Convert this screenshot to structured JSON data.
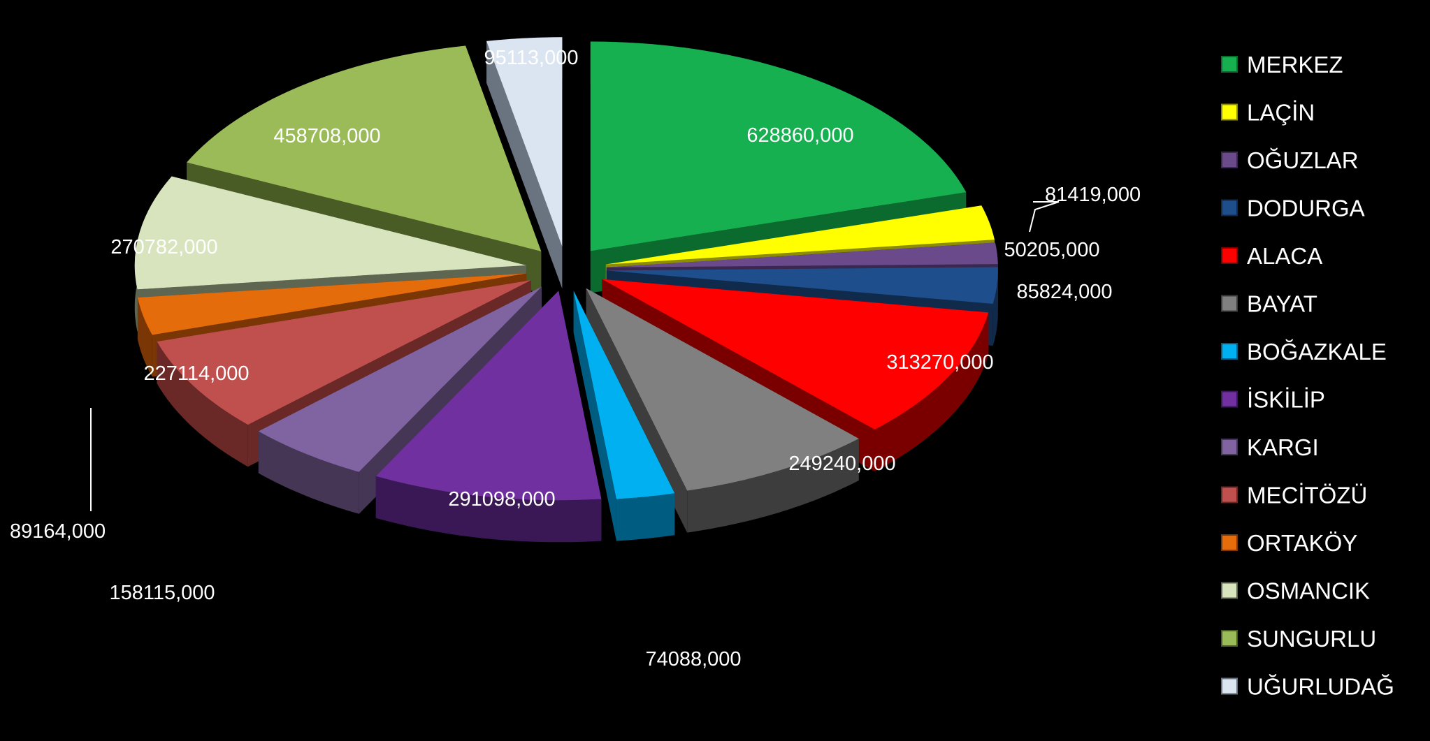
{
  "chart_data": {
    "type": "pie",
    "style": "3d-exploded",
    "legend_position": "right",
    "title": "",
    "series": [
      {
        "name": "MERKEZ",
        "value": 628860,
        "label": "628860,000",
        "color": "#16b050",
        "dark": "#0b6a2e",
        "label_color": "#ffffff"
      },
      {
        "name": "LAÇİN",
        "value": 81419,
        "label": "81419,000",
        "color": "#ffff00",
        "dark": "#8c8c00",
        "label_color": "#ffffff"
      },
      {
        "name": "OĞUZLAR",
        "value": 50205,
        "label": "50205,000",
        "color": "#6a4a8a",
        "dark": "#3a2850",
        "label_color": "#ffffff"
      },
      {
        "name": "DODURGA",
        "value": 85824,
        "label": "85824,000",
        "color": "#1f4e8c",
        "dark": "#102a4c",
        "label_color": "#ffffff"
      },
      {
        "name": "ALACA",
        "value": 313270,
        "label": "313270,000",
        "color": "#ff0000",
        "dark": "#7a0000",
        "label_color": "#ffffff"
      },
      {
        "name": "BAYAT",
        "value": 249240,
        "label": "249240,000",
        "color": "#808080",
        "dark": "#3d3d3d",
        "label_color": "#ffffff"
      },
      {
        "name": "BOĞAZKALE",
        "value": 74088,
        "label": "74088,000",
        "color": "#00b0f0",
        "dark": "#005c80",
        "label_color": "#ffffff"
      },
      {
        "name": "İSKİLİP",
        "value": 291098,
        "label": "291098,000",
        "color": "#7030a0",
        "dark": "#3a1856",
        "label_color": "#ffffff"
      },
      {
        "name": "KARGI",
        "value": 158115,
        "label": "158115,000",
        "color": "#8064a2",
        "dark": "#463656",
        "label_color": "#ffffff"
      },
      {
        "name": "MECİTÖZÜ",
        "value": 227114,
        "label": "227114,000",
        "color": "#c0504d",
        "dark": "#6a2826",
        "label_color": "#ffffff"
      },
      {
        "name": "ORTAKÖY",
        "value": 89164,
        "label": "89164,000",
        "color": "#e46c0a",
        "dark": "#7a3604",
        "label_color": "#ffffff"
      },
      {
        "name": "OSMANCIK",
        "value": 270782,
        "label": "270782,000",
        "color": "#d7e4bd",
        "dark": "#5e6652",
        "label_color": "#ffffff"
      },
      {
        "name": "SUNGURLU",
        "value": 458708,
        "label": "458708,000",
        "color": "#9bbb59",
        "dark": "#4a5c26",
        "label_color": "#ffffff"
      },
      {
        "name": "UĞURLUDAĞ",
        "value": 95113,
        "label": "95113,000",
        "color": "#dbe5f1",
        "dark": "#6a7480",
        "label_color": "#ffffff"
      }
    ]
  }
}
